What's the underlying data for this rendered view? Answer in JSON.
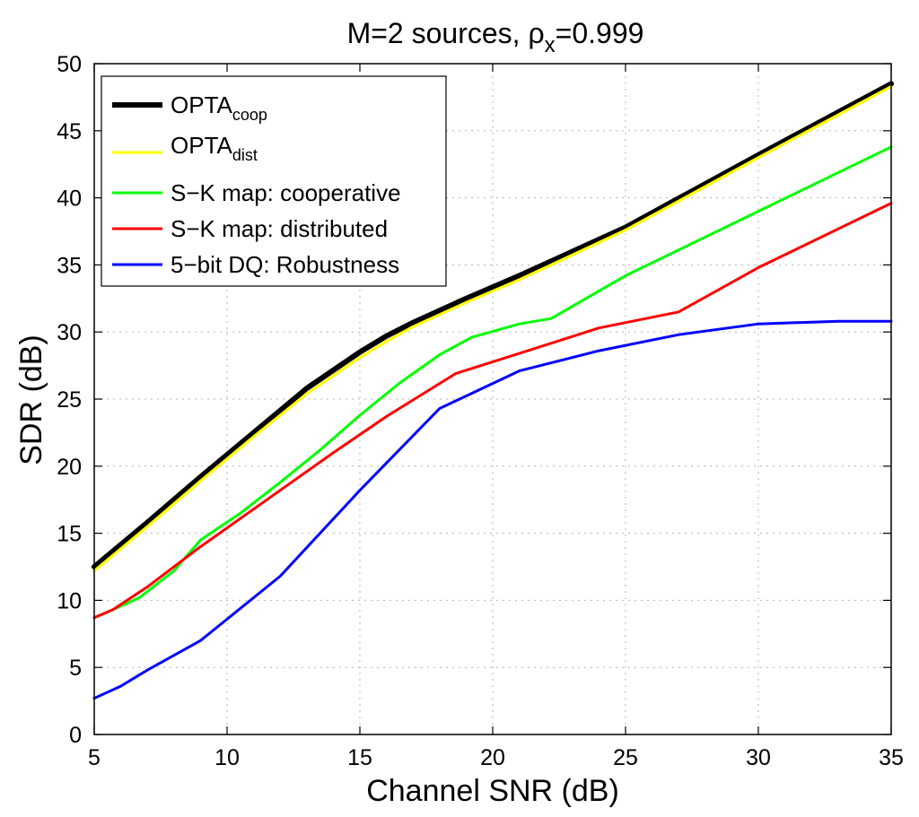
{
  "chart_data": {
    "type": "line",
    "title": "M=2 sources, ρ",
    "title_subscript": "x",
    "title_suffix": "=0.999",
    "xlabel": "Channel SNR (dB)",
    "ylabel": "SDR (dB)",
    "xlim": [
      5,
      35
    ],
    "ylim": [
      0,
      50
    ],
    "xticks": [
      5,
      10,
      15,
      20,
      25,
      30,
      35
    ],
    "yticks": [
      0,
      5,
      10,
      15,
      20,
      25,
      30,
      35,
      40,
      45,
      50
    ],
    "grid": true,
    "legend_position": "top-left",
    "series": [
      {
        "name": "OPTA",
        "subscript": "coop",
        "color": "#000000",
        "width": "thick",
        "x": [
          5,
          7,
          9,
          11,
          13,
          15,
          16,
          17,
          19,
          21,
          25,
          30,
          35
        ],
        "y": [
          12.5,
          15.8,
          19.2,
          22.5,
          25.8,
          28.5,
          29.7,
          30.7,
          32.5,
          34.2,
          37.8,
          43.2,
          48.5
        ]
      },
      {
        "name": "OPTA",
        "subscript": "dist",
        "color": "#ffff00",
        "width": "normal",
        "x": [
          5,
          7,
          9,
          11,
          13,
          15,
          16,
          17,
          19,
          21,
          25,
          30,
          35
        ],
        "y": [
          12.2,
          15.5,
          18.9,
          22.2,
          25.4,
          28.1,
          29.3,
          30.4,
          32.2,
          33.9,
          37.6,
          43.0,
          48.3
        ]
      },
      {
        "name": "S−K map: cooperative",
        "color": "#00ff00",
        "width": "normal",
        "x": [
          5,
          5.7,
          6.7,
          8,
          9,
          10.5,
          12,
          13.5,
          15,
          16.5,
          18,
          19.2,
          21,
          22.2,
          25,
          30,
          35
        ],
        "y": [
          8.7,
          9.3,
          10.2,
          12.2,
          14.5,
          16.5,
          18.8,
          21.2,
          23.8,
          26.2,
          28.3,
          29.6,
          30.6,
          31.0,
          34.2,
          39.0,
          43.8
        ]
      },
      {
        "name": "S−K map: distributed",
        "color": "#ff0000",
        "width": "normal",
        "x": [
          5,
          5.7,
          7,
          9,
          11,
          12,
          14,
          16,
          18.6,
          21,
          24,
          27,
          30,
          35
        ],
        "y": [
          8.7,
          9.3,
          11.0,
          14.0,
          16.8,
          18.2,
          21.0,
          23.7,
          26.9,
          28.4,
          30.3,
          31.5,
          34.8,
          39.6
        ]
      },
      {
        "name": "5−bit DQ: Robustness",
        "color": "#0000ff",
        "width": "normal",
        "x": [
          5,
          6,
          7,
          9,
          12,
          15,
          18,
          21,
          24,
          27,
          30,
          33,
          35
        ],
        "y": [
          2.7,
          3.6,
          4.8,
          7.0,
          11.8,
          18.2,
          24.3,
          27.1,
          28.6,
          29.8,
          30.6,
          30.8,
          30.8
        ]
      }
    ]
  }
}
